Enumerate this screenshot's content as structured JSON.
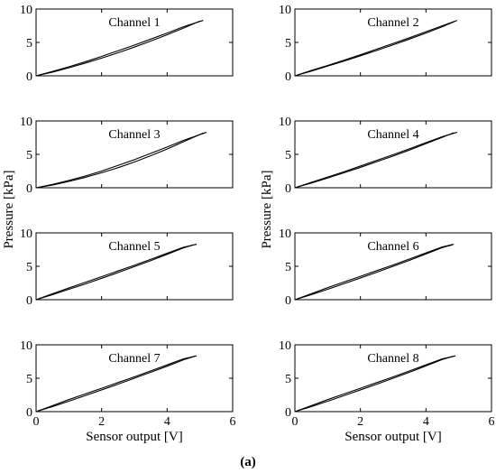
{
  "figure": {
    "caption": "(a)",
    "shared_xlabel": "Sensor output [V]",
    "shared_ylabel": "Pressure [kPa]"
  },
  "chart_data": [
    {
      "type": "line",
      "title": "Channel 1",
      "xlim": [
        0,
        6
      ],
      "ylim": [
        0,
        10
      ],
      "xticks": [
        0,
        2,
        4,
        6
      ],
      "yticks": [
        0,
        5,
        10
      ],
      "grid": false,
      "series": [
        {
          "x": [
            0,
            0.5,
            1,
            1.5,
            2,
            2.5,
            3,
            3.5,
            4,
            4.5,
            5.0
          ],
          "y": [
            0,
            0.55,
            1.2,
            1.9,
            2.65,
            3.45,
            4.3,
            5.2,
            6.15,
            7.15,
            8.2
          ]
        },
        {
          "x": [
            5.1,
            4.5,
            4.0,
            3.5,
            3.0,
            2.5,
            2.0,
            1.5,
            1.0,
            0.5,
            0
          ],
          "y": [
            8.3,
            7.35,
            6.4,
            5.5,
            4.6,
            3.75,
            2.9,
            2.1,
            1.35,
            0.65,
            0
          ]
        }
      ]
    },
    {
      "type": "line",
      "title": "Channel 2",
      "xlim": [
        0,
        6
      ],
      "ylim": [
        0,
        10
      ],
      "xticks": [
        0,
        2,
        4,
        6
      ],
      "yticks": [
        0,
        5,
        10
      ],
      "grid": false,
      "series": [
        {
          "x": [
            0,
            0.5,
            1,
            1.5,
            2,
            2.5,
            3,
            3.5,
            4,
            4.5,
            4.9
          ],
          "y": [
            0,
            0.7,
            1.45,
            2.2,
            3.0,
            3.8,
            4.65,
            5.5,
            6.4,
            7.35,
            8.2
          ]
        },
        {
          "x": [
            4.95,
            4.5,
            4.0,
            3.5,
            3.0,
            2.5,
            2.0,
            1.5,
            1.0,
            0.5,
            0
          ],
          "y": [
            8.3,
            7.5,
            6.6,
            5.7,
            4.85,
            4.0,
            3.15,
            2.35,
            1.55,
            0.8,
            0
          ]
        }
      ]
    },
    {
      "type": "line",
      "title": "Channel 3",
      "xlim": [
        0,
        6
      ],
      "ylim": [
        0,
        10
      ],
      "xticks": [
        0,
        2,
        4,
        6
      ],
      "yticks": [
        0,
        5,
        10
      ],
      "grid": false,
      "series": [
        {
          "x": [
            0,
            0.5,
            1,
            1.5,
            2,
            2.5,
            3,
            3.5,
            4,
            4.5,
            5.1
          ],
          "y": [
            0,
            0.4,
            0.95,
            1.55,
            2.25,
            3.0,
            3.85,
            4.8,
            5.8,
            6.9,
            8.2
          ]
        },
        {
          "x": [
            5.2,
            4.5,
            4.0,
            3.5,
            3.0,
            2.5,
            2.0,
            1.5,
            1.0,
            0.5,
            0
          ],
          "y": [
            8.3,
            7.1,
            6.1,
            5.15,
            4.2,
            3.35,
            2.5,
            1.75,
            1.1,
            0.5,
            0
          ]
        }
      ]
    },
    {
      "type": "line",
      "title": "Channel 4",
      "xlim": [
        0,
        6
      ],
      "ylim": [
        0,
        10
      ],
      "xticks": [
        0,
        2,
        4,
        6
      ],
      "yticks": [
        0,
        5,
        10
      ],
      "grid": false,
      "series": [
        {
          "x": [
            0,
            0.5,
            1,
            1.5,
            2,
            2.5,
            3,
            3.5,
            4,
            4.5,
            4.85
          ],
          "y": [
            0,
            0.7,
            1.45,
            2.25,
            3.05,
            3.9,
            4.75,
            5.65,
            6.6,
            7.55,
            8.25
          ]
        },
        {
          "x": [
            4.95,
            4.5,
            4.0,
            3.5,
            3.0,
            2.5,
            2.0,
            1.5,
            1.0,
            0.5,
            0
          ],
          "y": [
            8.3,
            7.65,
            6.75,
            5.85,
            4.95,
            4.1,
            3.25,
            2.4,
            1.6,
            0.8,
            0
          ]
        }
      ]
    },
    {
      "type": "line",
      "title": "Channel 5",
      "xlim": [
        0,
        6
      ],
      "ylim": [
        0,
        10
      ],
      "xticks": [
        0,
        2,
        4,
        6
      ],
      "yticks": [
        0,
        5,
        10
      ],
      "grid": false,
      "series": [
        {
          "x": [
            0,
            0.5,
            1,
            1.5,
            2,
            2.5,
            3,
            3.5,
            4,
            4.5,
            4.8
          ],
          "y": [
            0,
            0.75,
            1.55,
            2.35,
            3.2,
            4.05,
            4.95,
            5.85,
            6.8,
            7.75,
            8.2
          ]
        },
        {
          "x": [
            4.9,
            4.5,
            4.0,
            3.5,
            3.0,
            2.5,
            2.0,
            1.5,
            1.0,
            0.5,
            0
          ],
          "y": [
            8.3,
            7.85,
            6.95,
            6.05,
            5.15,
            4.3,
            3.45,
            2.6,
            1.75,
            0.9,
            0
          ]
        }
      ]
    },
    {
      "type": "line",
      "title": "Channel 6",
      "xlim": [
        0,
        6
      ],
      "ylim": [
        0,
        10
      ],
      "xticks": [
        0,
        2,
        4,
        6
      ],
      "yticks": [
        0,
        5,
        10
      ],
      "grid": false,
      "series": [
        {
          "x": [
            0,
            0.5,
            1,
            1.5,
            2,
            2.5,
            3,
            3.5,
            4,
            4.5,
            4.8
          ],
          "y": [
            0,
            0.75,
            1.55,
            2.4,
            3.25,
            4.1,
            5.0,
            5.9,
            6.85,
            7.8,
            8.2
          ]
        },
        {
          "x": [
            4.85,
            4.5,
            4.0,
            3.5,
            3.0,
            2.5,
            2.0,
            1.5,
            1.0,
            0.5,
            0
          ],
          "y": [
            8.3,
            7.9,
            7.0,
            6.1,
            5.2,
            4.35,
            3.5,
            2.65,
            1.8,
            0.9,
            0
          ]
        }
      ]
    },
    {
      "type": "line",
      "title": "Channel 7",
      "xlim": [
        0,
        6
      ],
      "ylim": [
        0,
        10
      ],
      "xticks": [
        0,
        2,
        4,
        6
      ],
      "yticks": [
        0,
        5,
        10
      ],
      "grid": false,
      "series": [
        {
          "x": [
            0,
            0.5,
            1,
            1.5,
            2,
            2.5,
            3,
            3.5,
            4,
            4.5,
            4.85
          ],
          "y": [
            0,
            0.75,
            1.55,
            2.4,
            3.25,
            4.1,
            5.0,
            5.9,
            6.8,
            7.75,
            8.3
          ]
        },
        {
          "x": [
            4.9,
            4.5,
            4.0,
            3.5,
            3.0,
            2.5,
            2.0,
            1.5,
            1.0,
            0.5,
            0
          ],
          "y": [
            8.35,
            7.9,
            7.0,
            6.1,
            5.2,
            4.35,
            3.5,
            2.65,
            1.8,
            0.9,
            0
          ]
        }
      ]
    },
    {
      "type": "line",
      "title": "Channel 8",
      "xlim": [
        0,
        6
      ],
      "ylim": [
        0,
        10
      ],
      "xticks": [
        0,
        2,
        4,
        6
      ],
      "yticks": [
        0,
        5,
        10
      ],
      "grid": false,
      "series": [
        {
          "x": [
            0,
            0.5,
            1,
            1.5,
            2,
            2.5,
            3,
            3.5,
            4,
            4.5,
            4.85
          ],
          "y": [
            0,
            0.75,
            1.55,
            2.4,
            3.25,
            4.1,
            5.0,
            5.9,
            6.85,
            7.8,
            8.3
          ]
        },
        {
          "x": [
            4.9,
            4.5,
            4.0,
            3.5,
            3.0,
            2.5,
            2.0,
            1.5,
            1.0,
            0.5,
            0
          ],
          "y": [
            8.35,
            7.9,
            7.0,
            6.1,
            5.2,
            4.35,
            3.5,
            2.65,
            1.8,
            0.9,
            0
          ]
        }
      ]
    }
  ]
}
